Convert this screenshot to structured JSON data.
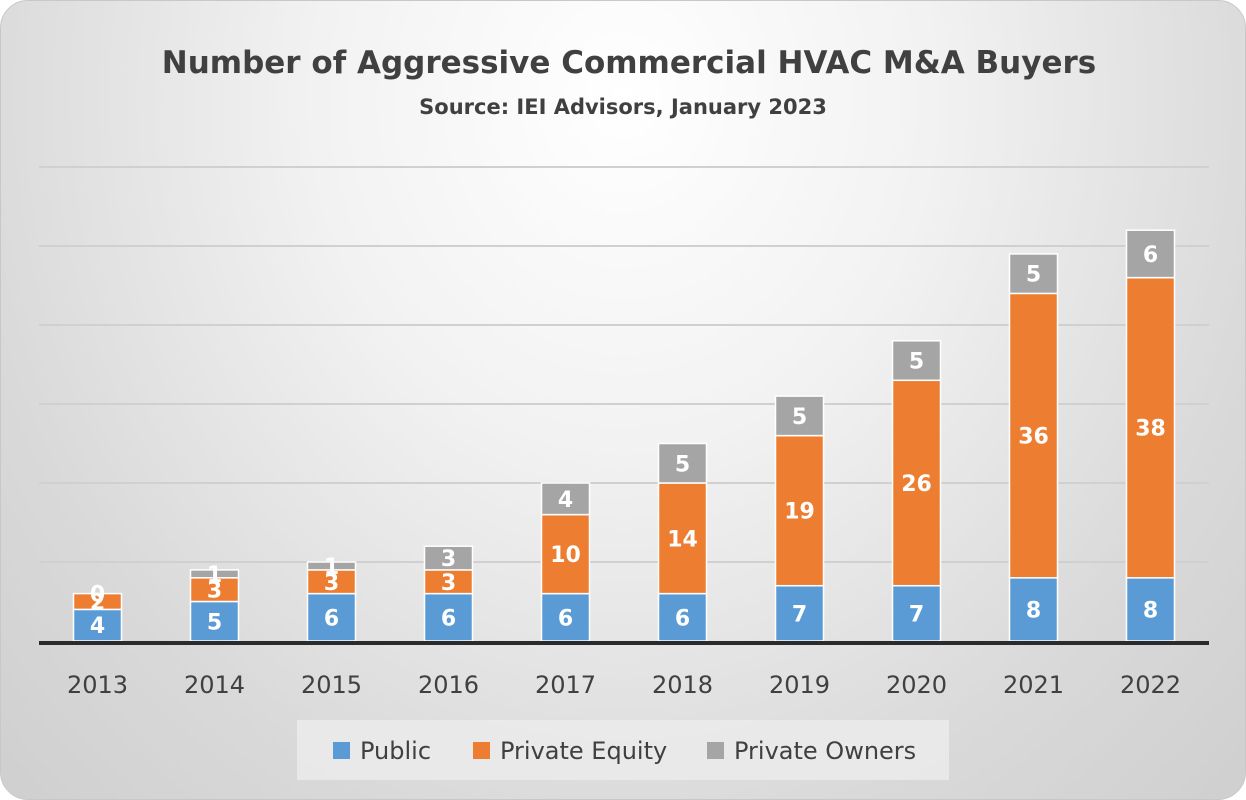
{
  "chart_data": {
    "type": "bar",
    "stacked": true,
    "title": "Number of Aggressive Commercial HVAC M&A Buyers",
    "subtitle": "Source: IEI Advisors, January 2023",
    "categories": [
      "2013",
      "2014",
      "2015",
      "2016",
      "2017",
      "2018",
      "2019",
      "2020",
      "2021",
      "2022"
    ],
    "series": [
      {
        "name": "Public",
        "color": "#5b9bd5",
        "values": [
          4,
          5,
          6,
          6,
          6,
          6,
          7,
          7,
          8,
          8
        ]
      },
      {
        "name": "Private Equity",
        "color": "#ed7d31",
        "values": [
          2,
          3,
          3,
          3,
          10,
          14,
          19,
          26,
          36,
          38
        ]
      },
      {
        "name": "Private Owners",
        "color": "#a5a5a5",
        "values": [
          0,
          1,
          1,
          3,
          4,
          5,
          5,
          5,
          5,
          6
        ]
      }
    ],
    "ylim": [
      0,
      60
    ],
    "grid": true,
    "legend_position": "bottom",
    "xlabel": "",
    "ylabel": ""
  }
}
